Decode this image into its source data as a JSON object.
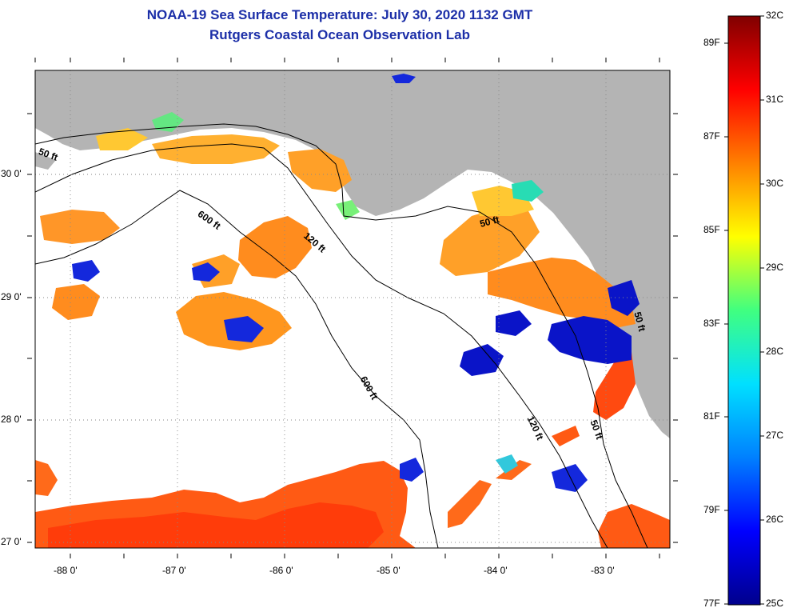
{
  "title": {
    "line1": "NOAA-19 Sea Surface Temperature:  July 30, 2020 1132 GMT",
    "line2": "Rutgers Coastal Ocean Observation Lab"
  },
  "map": {
    "lon_labels": [
      "-88 0'",
      "-87 0'",
      "-86 0'",
      "-85 0'",
      "-84 0'",
      "-83 0'"
    ],
    "lat_labels": [
      "30 0'",
      "29 0'",
      "28 0'",
      "27 0'"
    ],
    "contour_labels": [
      "50 ft",
      "600 ft",
      "120 ft",
      "50 ft",
      "600 ft",
      "120 ft",
      "50 ft",
      "50 ft"
    ],
    "colors": {
      "land": "#b4b4b4",
      "ocean_nodata": "#ffffff",
      "contour": "#000000"
    }
  },
  "colorbar": {
    "celsius_labels": [
      "32C",
      "31C",
      "30C",
      "29C",
      "28C",
      "27C",
      "26C",
      "25C"
    ],
    "fahrenheit_labels": [
      "89F",
      "87F",
      "85F",
      "83F",
      "81F",
      "79F",
      "77F"
    ],
    "colors": [
      "#00008c",
      "#0000ff",
      "#0080ff",
      "#00e0ff",
      "#40ff80",
      "#ffff00",
      "#ff8000",
      "#ff0000",
      "#800000"
    ]
  }
}
